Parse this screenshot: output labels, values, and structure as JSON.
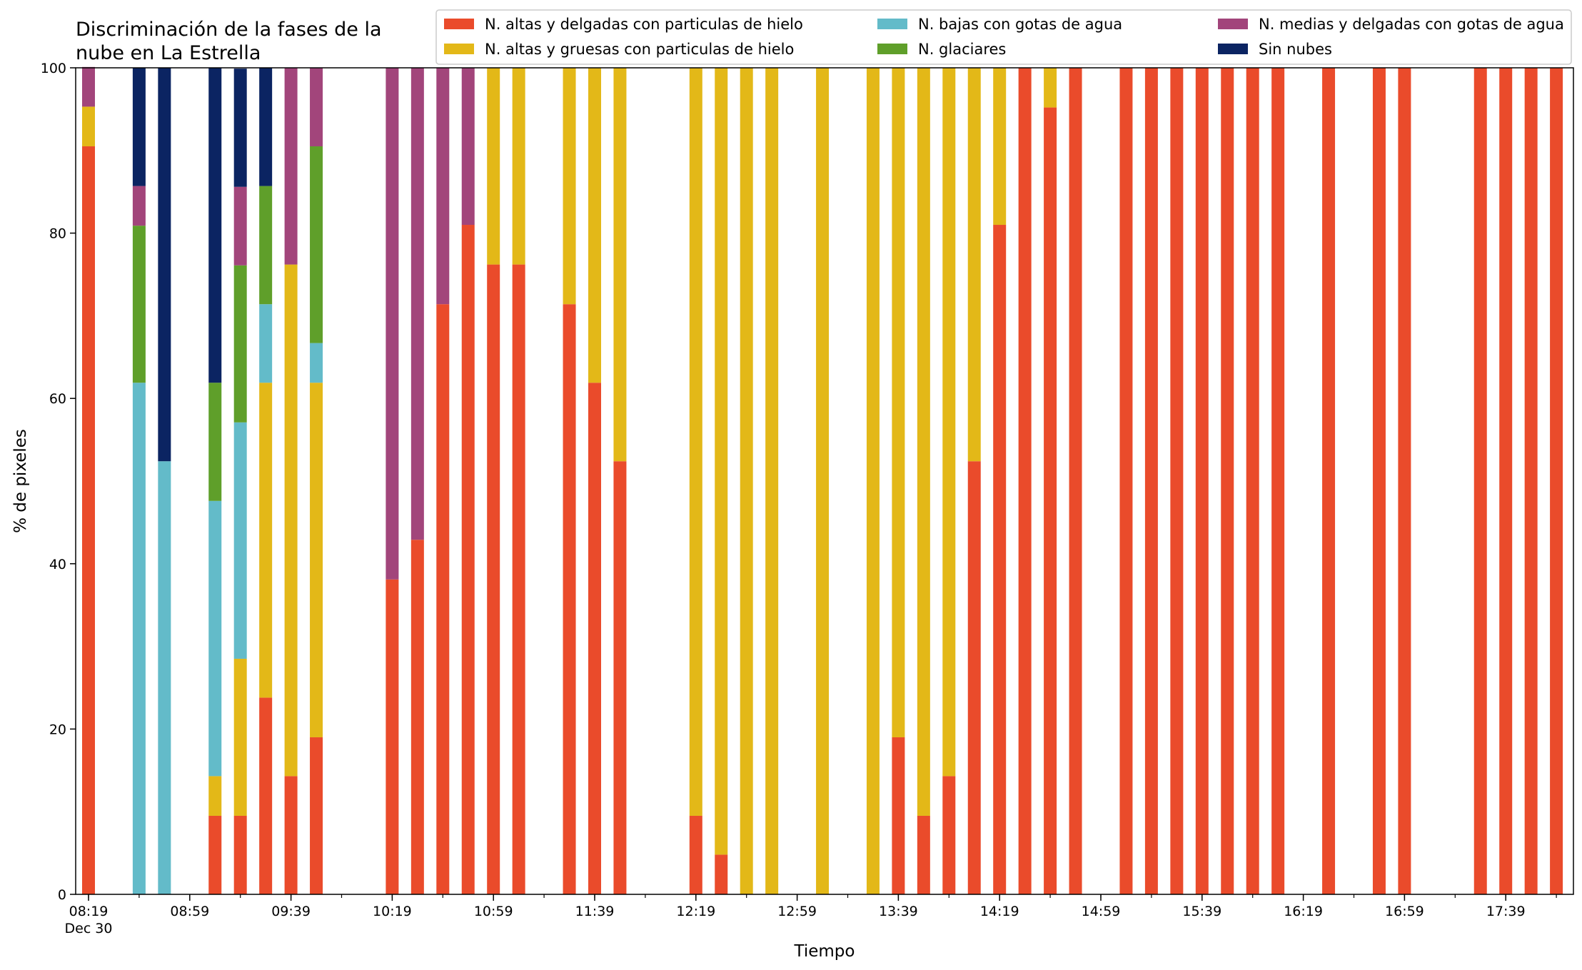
{
  "chart_data": {
    "type": "bar",
    "stacked": true,
    "title": "Discriminación de la fases de la\nnube en La Estrella",
    "xlabel": "Tiempo",
    "ylabel": "% de pixeles",
    "ylim": [
      0,
      100
    ],
    "yticks": [
      0,
      20,
      40,
      60,
      80,
      100
    ],
    "x_tick_labels": [
      "08:19",
      "08:59",
      "09:39",
      "10:19",
      "10:59",
      "11:39",
      "12:19",
      "12:59",
      "13:39",
      "14:19",
      "14:59",
      "15:39",
      "16:19",
      "16:59",
      "17:39"
    ],
    "x_date_label": "Dec 30",
    "x_start": "08:19",
    "x_end": "17:59",
    "x_step_minutes": 10,
    "grid": false,
    "legend_position": "top",
    "categories": [
      "08:19",
      "08:29",
      "08:39",
      "08:49",
      "08:59",
      "09:09",
      "09:19",
      "09:29",
      "09:39",
      "09:49",
      "09:59",
      "10:09",
      "10:19",
      "10:29",
      "10:39",
      "10:49",
      "10:59",
      "11:09",
      "11:19",
      "11:29",
      "11:39",
      "11:49",
      "11:59",
      "12:09",
      "12:19",
      "12:29",
      "12:39",
      "12:49",
      "12:59",
      "13:09",
      "13:19",
      "13:29",
      "13:39",
      "13:49",
      "13:59",
      "14:09",
      "14:19",
      "14:29",
      "14:39",
      "14:49",
      "14:59",
      "15:09",
      "15:19",
      "15:29",
      "15:39",
      "15:49",
      "15:59",
      "16:09",
      "16:19",
      "16:29",
      "16:39",
      "16:49",
      "16:59",
      "17:09",
      "17:19",
      "17:29",
      "17:39",
      "17:49",
      "17:59"
    ],
    "series": [
      {
        "name": "N. altas y delgadas con particulas de hielo",
        "color": "#ea4b2b",
        "values": [
          90.5,
          0,
          0,
          0,
          0,
          9.5,
          9.5,
          23.8,
          14.3,
          19.0,
          0,
          0,
          38.1,
          42.9,
          71.4,
          81.0,
          76.2,
          76.2,
          0,
          71.4,
          61.9,
          52.4,
          0,
          0,
          9.5,
          4.8,
          0,
          0,
          0,
          0,
          0,
          0,
          19.0,
          9.5,
          14.3,
          52.4,
          81.0,
          100,
          95.2,
          100,
          0,
          100,
          100,
          100,
          100,
          100,
          100,
          100,
          0,
          100,
          0,
          100,
          100,
          0,
          0,
          100,
          100,
          100,
          100
        ]
      },
      {
        "name": "N. altas y gruesas con particulas de hielo",
        "color": "#e3b818",
        "values": [
          4.8,
          0,
          0,
          0,
          0,
          4.8,
          19.0,
          38.1,
          61.9,
          42.9,
          0,
          0,
          0,
          0,
          0,
          0,
          23.8,
          23.8,
          0,
          28.6,
          38.1,
          47.6,
          0,
          0,
          90.5,
          95.2,
          100,
          100,
          0,
          100,
          0,
          100,
          81.0,
          90.5,
          85.7,
          47.6,
          19.0,
          0,
          4.8,
          0,
          0,
          0,
          0,
          0,
          0,
          0,
          0,
          0,
          0,
          0,
          0,
          0,
          0,
          0,
          0,
          0,
          0,
          0,
          0
        ]
      },
      {
        "name": "N. bajas con gotas de agua",
        "color": "#63bbc9",
        "values": [
          0,
          0,
          61.9,
          52.4,
          0,
          33.3,
          28.6,
          9.5,
          0,
          4.8,
          0,
          0,
          0,
          0,
          0,
          0,
          0,
          0,
          0,
          0,
          0,
          0,
          0,
          0,
          0,
          0,
          0,
          0,
          0,
          0,
          0,
          0,
          0,
          0,
          0,
          0,
          0,
          0,
          0,
          0,
          0,
          0,
          0,
          0,
          0,
          0,
          0,
          0,
          0,
          0,
          0,
          0,
          0,
          0,
          0,
          0,
          0,
          0,
          0
        ]
      },
      {
        "name": "N. glaciares",
        "color": "#5f9f2a",
        "values": [
          0,
          0,
          19.0,
          0,
          0,
          14.3,
          19.0,
          14.3,
          0,
          23.8,
          0,
          0,
          0,
          0,
          0,
          0,
          0,
          0,
          0,
          0,
          0,
          0,
          0,
          0,
          0,
          0,
          0,
          0,
          0,
          0,
          0,
          0,
          0,
          0,
          0,
          0,
          0,
          0,
          0,
          0,
          0,
          0,
          0,
          0,
          0,
          0,
          0,
          0,
          0,
          0,
          0,
          0,
          0,
          0,
          0,
          0,
          0,
          0,
          0
        ]
      },
      {
        "name": "N. medias y delgadas con gotas de agua",
        "color": "#a2457b",
        "values": [
          4.8,
          0,
          4.8,
          0,
          0,
          0,
          9.5,
          0,
          23.8,
          9.5,
          0,
          0,
          61.9,
          57.1,
          28.6,
          19.0,
          0,
          0,
          0,
          0,
          0,
          0,
          0,
          0,
          0,
          0,
          0,
          0,
          0,
          0,
          0,
          0,
          0,
          0,
          0,
          0,
          0,
          0,
          0,
          0,
          0,
          0,
          0,
          0,
          0,
          0,
          0,
          0,
          0,
          0,
          0,
          0,
          0,
          0,
          0,
          0,
          0,
          0,
          0
        ]
      },
      {
        "name": "Sin nubes",
        "color": "#0b2462",
        "values": [
          0,
          0,
          14.3,
          47.6,
          0,
          38.1,
          14.3,
          14.3,
          0,
          0,
          0,
          0,
          0,
          0,
          0,
          0,
          0,
          0,
          0,
          0,
          0,
          0,
          0,
          0,
          0,
          0,
          0,
          0,
          0,
          0,
          0,
          0,
          0,
          0,
          0,
          0,
          0,
          0,
          0,
          0,
          0,
          0,
          0,
          0,
          0,
          0,
          0,
          0,
          0,
          0,
          0,
          0,
          0,
          0,
          0,
          0,
          0,
          0,
          0
        ]
      }
    ]
  }
}
